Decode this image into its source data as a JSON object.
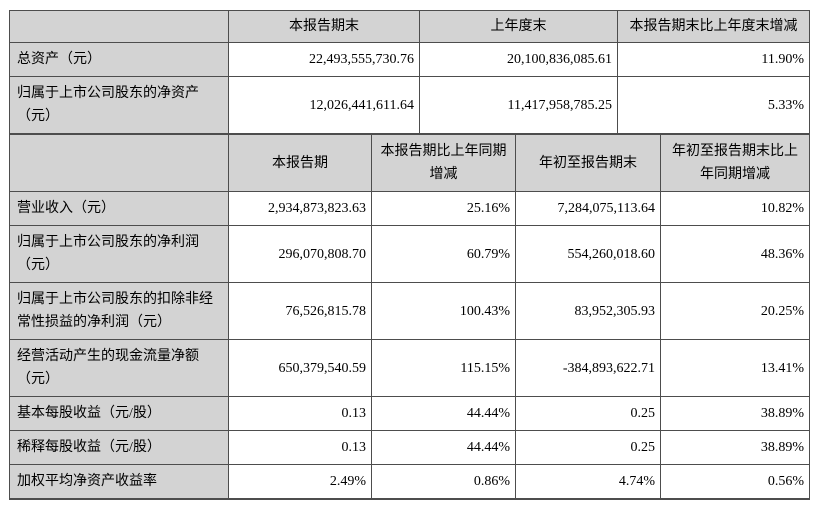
{
  "colors": {
    "header_bg": "#d3d3d3",
    "border": "#4d4d4d",
    "text": "#000000",
    "page_bg": "#ffffff"
  },
  "table1": {
    "headers": [
      "",
      "本报告期末",
      "上年度末",
      "本报告期末比上年度末增减"
    ],
    "rows": [
      {
        "label": "总资产（元）",
        "values": [
          "22,493,555,730.76",
          "20,100,836,085.61",
          "11.90%"
        ]
      },
      {
        "label": "归属于上市公司股东的净资产（元）",
        "values": [
          "12,026,441,611.64",
          "11,417,958,785.25",
          "5.33%"
        ]
      }
    ]
  },
  "table2": {
    "headers": [
      "",
      "本报告期",
      "本报告期比上年同期增减",
      "年初至报告期末",
      "年初至报告期末比上年同期增减"
    ],
    "rows": [
      {
        "label": "营业收入（元）",
        "values": [
          "2,934,873,823.63",
          "25.16%",
          "7,284,075,113.64",
          "10.82%"
        ]
      },
      {
        "label": "归属于上市公司股东的净利润（元）",
        "values": [
          "296,070,808.70",
          "60.79%",
          "554,260,018.60",
          "48.36%"
        ]
      },
      {
        "label": "归属于上市公司股东的扣除非经常性损益的净利润（元）",
        "values": [
          "76,526,815.78",
          "100.43%",
          "83,952,305.93",
          "20.25%"
        ]
      },
      {
        "label": "经营活动产生的现金流量净额（元）",
        "values": [
          "650,379,540.59",
          "115.15%",
          "-384,893,622.71",
          "13.41%"
        ]
      },
      {
        "label": "基本每股收益（元/股）",
        "values": [
          "0.13",
          "44.44%",
          "0.25",
          "38.89%"
        ]
      },
      {
        "label": "稀释每股收益（元/股）",
        "values": [
          "0.13",
          "44.44%",
          "0.25",
          "38.89%"
        ]
      },
      {
        "label": "加权平均净资产收益率",
        "values": [
          "2.49%",
          "0.86%",
          "4.74%",
          "0.56%"
        ]
      }
    ]
  }
}
